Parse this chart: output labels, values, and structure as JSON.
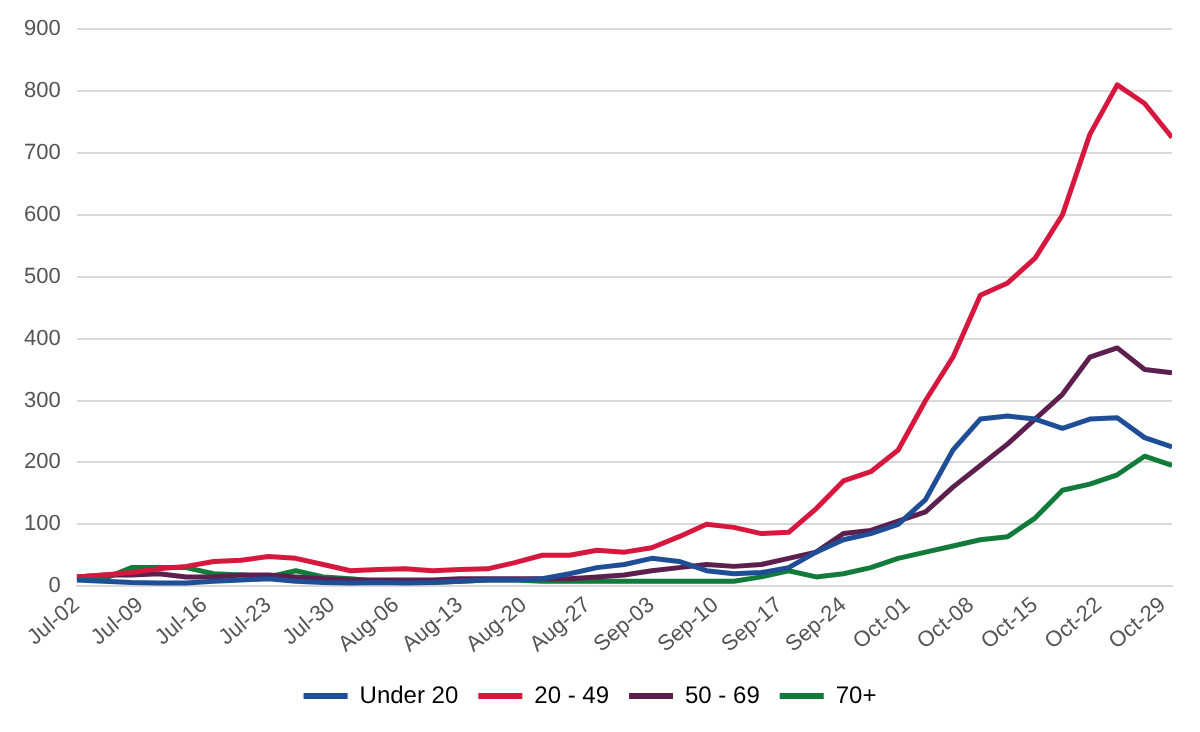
{
  "chart_data": {
    "type": "line",
    "x": [
      "--07-02",
      "--07-05",
      "--07-08",
      "--07-11",
      "--07-14",
      "--07-17",
      "--07-20",
      "--07-23",
      "--07-26",
      "--07-29",
      "--08-01",
      "--08-04",
      "--08-07",
      "--08-10",
      "--08-13",
      "--08-16",
      "--08-19",
      "--08-22",
      "--08-25",
      "--08-28",
      "--08-31",
      "--09-03",
      "--09-06",
      "--09-09",
      "--09-12",
      "--09-15",
      "--09-18",
      "--09-21",
      "--09-24",
      "--09-27",
      "--09-30",
      "--10-03",
      "--10-06",
      "--10-09",
      "--10-12",
      "--10-15",
      "--10-18",
      "--10-21",
      "--10-24",
      "--10-27",
      "--10-30"
    ],
    "series": [
      {
        "name": "Under 20",
        "color": "#1f4e96",
        "values": [
          10,
          8,
          6,
          5,
          5,
          8,
          10,
          12,
          8,
          6,
          5,
          6,
          5,
          6,
          8,
          10,
          10,
          12,
          20,
          30,
          35,
          45,
          40,
          25,
          20,
          22,
          30,
          55,
          75,
          85,
          100,
          140,
          220,
          270,
          275,
          270,
          255,
          270,
          272,
          240,
          225
        ]
      },
      {
        "name": "20 - 49",
        "color": "#d6173e",
        "values": [
          15,
          18,
          22,
          28,
          32,
          40,
          42,
          48,
          45,
          35,
          25,
          27,
          28,
          25,
          27,
          28,
          38,
          50,
          50,
          58,
          55,
          62,
          80,
          100,
          95,
          85,
          87,
          125,
          170,
          185,
          220,
          300,
          370,
          470,
          490,
          530,
          600,
          730,
          810,
          780,
          725
        ]
      },
      {
        "name": "50 - 69",
        "color": "#5c1f4e",
        "values": [
          15,
          18,
          18,
          20,
          15,
          15,
          18,
          18,
          15,
          12,
          10,
          10,
          10,
          10,
          12,
          12,
          12,
          12,
          12,
          15,
          18,
          25,
          30,
          35,
          32,
          35,
          45,
          55,
          85,
          90,
          105,
          120,
          160,
          195,
          230,
          270,
          310,
          370,
          385,
          350,
          345
        ]
      },
      {
        "name": "70+",
        "color": "#127a3a",
        "values": [
          15,
          12,
          30,
          30,
          30,
          20,
          18,
          15,
          25,
          15,
          12,
          8,
          8,
          6,
          8,
          10,
          10,
          8,
          8,
          8,
          8,
          8,
          8,
          8,
          8,
          15,
          25,
          15,
          20,
          30,
          45,
          55,
          65,
          75,
          80,
          110,
          155,
          165,
          180,
          210,
          195
        ]
      }
    ],
    "xlim": [
      "--07-02",
      "--10-30"
    ],
    "xticks": [
      {
        "value": "--07-02",
        "label": "Jul-02"
      },
      {
        "value": "--07-09",
        "label": "Jul-09"
      },
      {
        "value": "--07-16",
        "label": "Jul-16"
      },
      {
        "value": "--07-23",
        "label": "Jul-23"
      },
      {
        "value": "--07-30",
        "label": "Jul-30"
      },
      {
        "value": "--08-06",
        "label": "Aug-06"
      },
      {
        "value": "--08-13",
        "label": "Aug-13"
      },
      {
        "value": "--08-20",
        "label": "Aug-20"
      },
      {
        "value": "--08-27",
        "label": "Aug-27"
      },
      {
        "value": "--09-03",
        "label": "Sep-03"
      },
      {
        "value": "--09-10",
        "label": "Sep-10"
      },
      {
        "value": "--09-17",
        "label": "Sep-17"
      },
      {
        "value": "--09-24",
        "label": "Sep-24"
      },
      {
        "value": "--10-01",
        "label": "Oct-01"
      },
      {
        "value": "--10-08",
        "label": "Oct-08"
      },
      {
        "value": "--10-15",
        "label": "Oct-15"
      },
      {
        "value": "--10-22",
        "label": "Oct-22"
      },
      {
        "value": "--10-29",
        "label": "Oct-29"
      }
    ],
    "ylim": [
      0,
      900
    ],
    "yticks": [
      0,
      100,
      200,
      300,
      400,
      500,
      600,
      700,
      800,
      900
    ],
    "grid": "y",
    "legend": "bottom",
    "marker": "none",
    "line_style": "solid"
  }
}
